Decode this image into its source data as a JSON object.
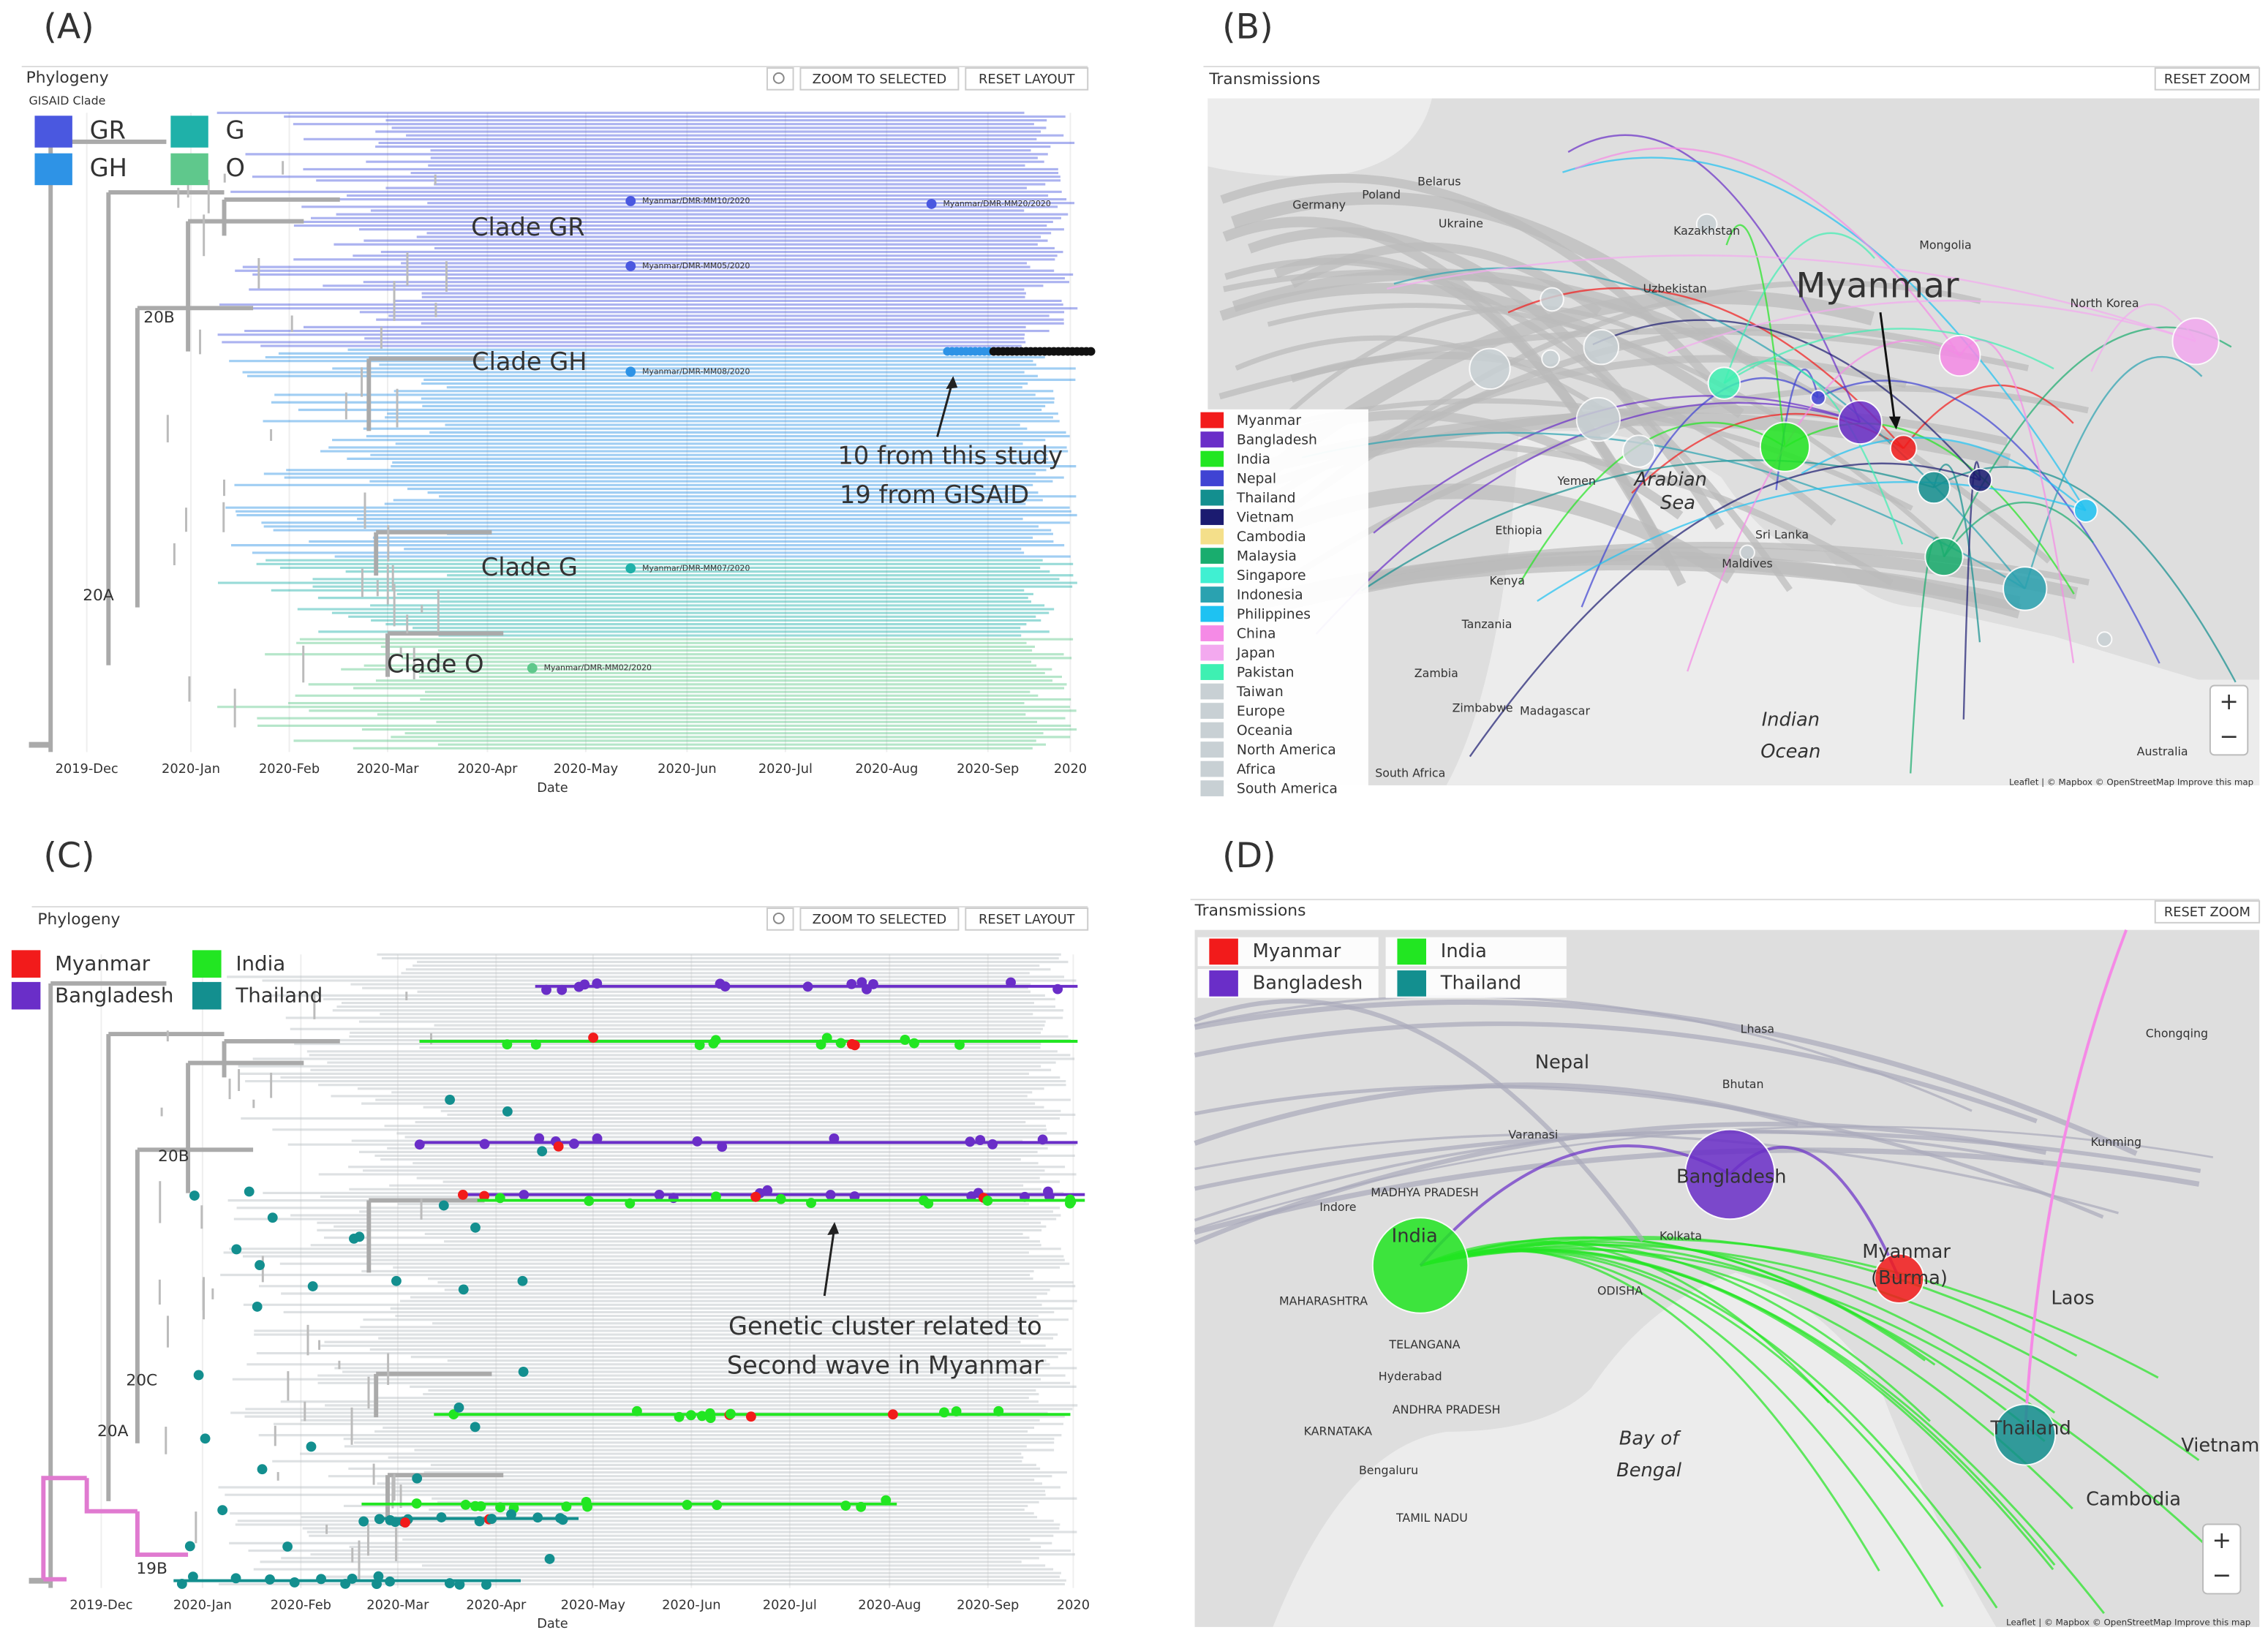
{
  "panels": [
    {
      "label": "(A)",
      "header": "Phylogeny",
      "buttons": [
        "ZOOM TO SELECTED",
        "RESET LAYOUT"
      ],
      "color_by": "GISAID Clade",
      "legend": [
        {
          "name": "GR",
          "color": "#4a58e0"
        },
        {
          "name": "GH",
          "color": "#2e93e6"
        },
        {
          "name": "G",
          "color": "#1fb1a9"
        },
        {
          "name": "O",
          "color": "#5fc88c"
        }
      ],
      "clade_labels": [
        "Clade GR",
        "Clade GH",
        "Clade G",
        "Clade O"
      ],
      "branch_labels": [
        "20B",
        "20A"
      ],
      "tip_labels": [
        "Myanmar/DMR-MM10/2020",
        "Myanmar/DMR-MM20/2020",
        "Myanmar/DMR-MM05/2020",
        "Myanmar/DMR-MM08/2020",
        "Myanmar/DMR-MM07/2020",
        "Myanmar/DMR-MM02/2020"
      ],
      "annotation": [
        "10 from this study",
        "19 from GISAID"
      ],
      "x_tick_labels": [
        "2019-Dec",
        "2020-Jan",
        "2020-Feb",
        "2020-Mar",
        "2020-Apr",
        "2020-May",
        "2020-Jun",
        "2020-Jul",
        "2020-Aug",
        "2020-Sep",
        "2020"
      ],
      "x_axis_label": "Date"
    },
    {
      "label": "(B)",
      "header": "Transmissions",
      "buttons": [
        "RESET ZOOM"
      ],
      "legend": [
        {
          "name": "Myanmar",
          "color": "#f21b1b"
        },
        {
          "name": "Bangladesh",
          "color": "#6a2ec8"
        },
        {
          "name": "India",
          "color": "#22e622"
        },
        {
          "name": "Nepal",
          "color": "#3f43d3"
        },
        {
          "name": "Thailand",
          "color": "#138f8f"
        },
        {
          "name": "Vietnam",
          "color": "#1b1b70"
        },
        {
          "name": "Cambodia",
          "color": "#f4df8a"
        },
        {
          "name": "Malaysia",
          "color": "#19ad6e"
        },
        {
          "name": "Singapore",
          "color": "#40f0d2"
        },
        {
          "name": "Indonesia",
          "color": "#2aa2b0"
        },
        {
          "name": "Philippines",
          "color": "#1ec2f2"
        },
        {
          "name": "China",
          "color": "#f58ae6"
        },
        {
          "name": "Japan",
          "color": "#f3a9ef"
        },
        {
          "name": "Pakistan",
          "color": "#3ef0b2"
        },
        {
          "name": "Taiwan",
          "color": "#c8d0d4"
        },
        {
          "name": "Europe",
          "color": "#c8d0d4"
        },
        {
          "name": "Oceania",
          "color": "#c8d0d4"
        },
        {
          "name": "North America",
          "color": "#c8d0d4"
        },
        {
          "name": "Africa",
          "color": "#c8d0d4"
        },
        {
          "name": "South America",
          "color": "#c8d0d4"
        }
      ],
      "callout": "Myanmar",
      "place_labels": [
        "Belarus",
        "Poland",
        "Ukraine",
        "Germany",
        "Kazakhstan",
        "Mongolia",
        "Uzbekistan",
        "Yemen",
        "Ethiopia",
        "Kenya",
        "Tanzania",
        "Zambia",
        "Zimbabwe",
        "Madagascar",
        "Arabian",
        "Sea",
        "Indian",
        "Ocean",
        "Maldives",
        "Sri Lanka",
        "Australia",
        "South Africa",
        "North Korea"
      ],
      "zoom": [
        "+",
        "−"
      ],
      "attribution": "Leaflet | © Mapbox © OpenStreetMap Improve this map"
    },
    {
      "label": "(C)",
      "header": "Phylogeny",
      "buttons": [
        "ZOOM TO SELECTED",
        "RESET LAYOUT"
      ],
      "legend": [
        {
          "name": "Myanmar",
          "color": "#f21b1b"
        },
        {
          "name": "Bangladesh",
          "color": "#6a2ec8"
        },
        {
          "name": "India",
          "color": "#22e622"
        },
        {
          "name": "Thailand",
          "color": "#138f8f"
        }
      ],
      "branch_labels": [
        "20B",
        "20C",
        "20A",
        "19B"
      ],
      "annotation": [
        "Genetic cluster related to",
        "Second  wave in Myanmar"
      ],
      "x_tick_labels": [
        "2019-Dec",
        "2020-Jan",
        "2020-Feb",
        "2020-Mar",
        "2020-Apr",
        "2020-May",
        "2020-Jun",
        "2020-Jul",
        "2020-Aug",
        "2020-Sep",
        "2020"
      ],
      "x_axis_label": "Date"
    },
    {
      "label": "(D)",
      "header": "Transmissions",
      "buttons": [
        "RESET ZOOM"
      ],
      "legend": [
        {
          "name": "Myanmar",
          "color": "#f21b1b"
        },
        {
          "name": "Bangladesh",
          "color": "#6a2ec8"
        },
        {
          "name": "India",
          "color": "#22e622"
        },
        {
          "name": "Thailand",
          "color": "#138f8f"
        }
      ],
      "place_labels": [
        "Nepal",
        "Bhutan",
        "Lhasa",
        "Varanasi",
        "Indore",
        "Kolkata",
        "MADHYA PRADESH",
        "MAHARASHTRA",
        "TELANGANA",
        "Hyderabad",
        "ANDHRA PRADESH",
        "KARNATAKA",
        "Bengaluru",
        "TAMIL NADU",
        "ODISHA",
        "Bay of",
        "Bengal",
        "Kunming",
        "Chongqing",
        "Laos",
        "Vietnam",
        "Cambodia",
        "India",
        "Bangladesh",
        "Myanmar",
        "(Burma)",
        "Thailand"
      ],
      "zoom": [
        "+",
        "−"
      ],
      "attribution": "Leaflet | © Mapbox © OpenStreetMap Improve this map"
    }
  ]
}
